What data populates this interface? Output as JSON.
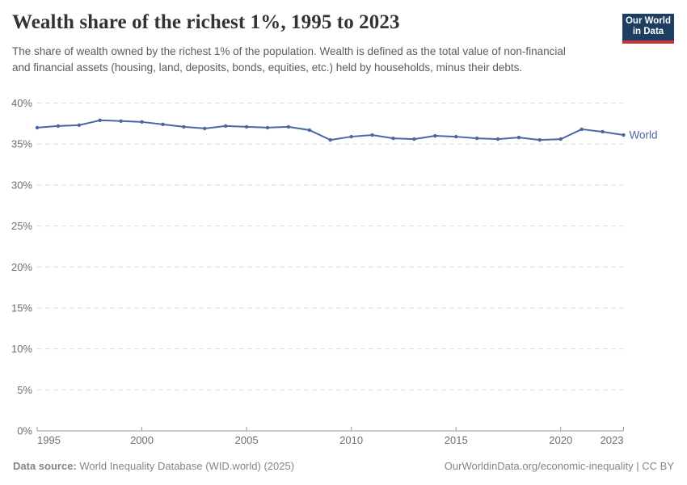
{
  "header": {
    "title": "Wealth share of the richest 1%, 1995 to 2023",
    "subtitle": "The share of wealth owned by the richest 1% of the population. Wealth is defined as the total value of non-financial and financial assets (housing, land, deposits, bonds, equities, etc.) held by households, minus their debts.",
    "logo": {
      "line1": "Our World",
      "line2": "in Data"
    }
  },
  "chart_data": {
    "type": "line",
    "title": "Wealth share of the richest 1%, 1995 to 2023",
    "xlabel": "",
    "ylabel": "",
    "xlim": [
      1995,
      2023
    ],
    "ylim": [
      0,
      40
    ],
    "grid": "horizontal-dashed",
    "legend_position": "end-of-line",
    "yticks": [
      0,
      5,
      10,
      15,
      20,
      25,
      30,
      35,
      40
    ],
    "ytick_suffix": "%",
    "xticks": [
      1995,
      2000,
      2005,
      2010,
      2015,
      2020,
      2023
    ],
    "x": [
      1995,
      1996,
      1997,
      1998,
      1999,
      2000,
      2001,
      2002,
      2003,
      2004,
      2005,
      2006,
      2007,
      2008,
      2009,
      2010,
      2011,
      2012,
      2013,
      2014,
      2015,
      2016,
      2017,
      2018,
      2019,
      2020,
      2021,
      2022,
      2023
    ],
    "series": [
      {
        "name": "World",
        "color": "#4a67a3",
        "unit": "%",
        "values": [
          37.0,
          37.2,
          37.3,
          37.9,
          37.8,
          37.7,
          37.4,
          37.1,
          36.9,
          37.2,
          37.1,
          37.0,
          37.1,
          36.7,
          35.5,
          35.9,
          36.1,
          35.7,
          35.6,
          36.0,
          35.9,
          35.7,
          35.6,
          35.8,
          35.5,
          35.6,
          36.8,
          36.5,
          36.1
        ]
      }
    ]
  },
  "footer": {
    "datasource_label": "Data source:",
    "datasource_value": "World Inequality Database (WID.world) (2025)",
    "link": "OurWorldinData.org/economic-inequality | CC BY"
  },
  "colors": {
    "logo_navy": "#1d3d63",
    "logo_red": "#c5353f",
    "line_blue": "#4a67a3",
    "gridline": "#dddddd",
    "axis": "#999999",
    "tick_text": "#6e6e6e",
    "title_text": "#333333",
    "subtitle_text": "#5b5b5b",
    "footer_text": "#858585"
  }
}
